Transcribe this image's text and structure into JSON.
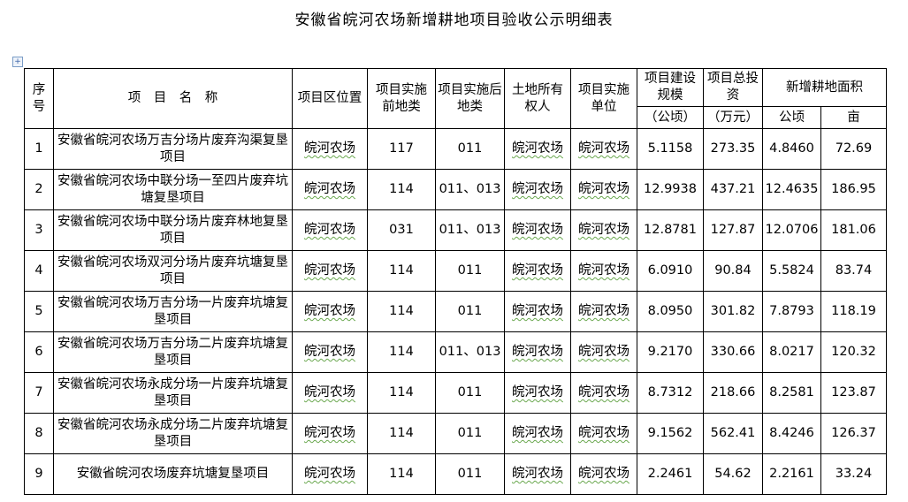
{
  "title": "安徽省皖河农场新增耕地项目验收公示明细表",
  "table": {
    "headers": {
      "seq": "序号",
      "name": "项　目　名　称",
      "location": "项目区位置",
      "before_type": "项目实施前地类",
      "after_type": "项目实施后地类",
      "owner": "土地所有权人",
      "unit": "项目实施单位",
      "scale": "项目建设规模",
      "scale_unit": "（公顷）",
      "invest": "项目总投资",
      "invest_unit": "（万元）",
      "new_area": "新增耕地面积",
      "new_area_ha": "公顷",
      "new_area_mu": "亩"
    },
    "rows": [
      {
        "seq": "1",
        "name": "安徽省皖河农场万吉分场片废弃沟渠复垦项目",
        "location": "皖河农场",
        "before": "117",
        "after": "011",
        "owner": "皖河农场",
        "unit": "皖河农场",
        "scale": "5.1158",
        "invest": "273.35",
        "ha": "4.8460",
        "mu": "72.69"
      },
      {
        "seq": "2",
        "name": "安徽省皖河农场中联分场一至四片废弃坑塘复垦项目",
        "location": "皖河农场",
        "before": "114",
        "after": "011、013",
        "owner": "皖河农场",
        "unit": "皖河农场",
        "scale": "12.9938",
        "invest": "437.21",
        "ha": "12.4635",
        "mu": "186.95"
      },
      {
        "seq": "3",
        "name": "安徽省皖河农场中联分场片废弃林地复垦项目",
        "location": "皖河农场",
        "before": "031",
        "after": "011、013",
        "owner": "皖河农场",
        "unit": "皖河农场",
        "scale": "12.8781",
        "invest": "127.87",
        "ha": "12.0706",
        "mu": "181.06"
      },
      {
        "seq": "4",
        "name": "安徽省皖河农场双河分场片废弃坑塘复垦项目",
        "location": "皖河农场",
        "before": "114",
        "after": "011",
        "owner": "皖河农场",
        "unit": "皖河农场",
        "scale": "6.0910",
        "invest": "90.84",
        "ha": "5.5824",
        "mu": "83.74"
      },
      {
        "seq": "5",
        "name": "安徽省皖河农场万吉分场一片废弃坑塘复垦项目",
        "location": "皖河农场",
        "before": "114",
        "after": "011",
        "owner": "皖河农场",
        "unit": "皖河农场",
        "scale": "8.0950",
        "invest": "301.82",
        "ha": "7.8793",
        "mu": "118.19"
      },
      {
        "seq": "6",
        "name": "安徽省皖河农场万吉分场二片废弃坑塘复垦项目",
        "location": "皖河农场",
        "before": "114",
        "after": "011、013",
        "owner": "皖河农场",
        "unit": "皖河农场",
        "scale": "9.2170",
        "invest": "330.66",
        "ha": "8.0217",
        "mu": "120.32"
      },
      {
        "seq": "7",
        "name": "安徽省皖河农场永成分场一片废弃坑塘复垦项目",
        "location": "皖河农场",
        "before": "114",
        "after": "011",
        "owner": "皖河农场",
        "unit": "皖河农场",
        "scale": "8.7312",
        "invest": "218.66",
        "ha": "8.2581",
        "mu": "123.87"
      },
      {
        "seq": "8",
        "name": "安徽省皖河农场永成分场二片废弃坑塘复垦项目",
        "location": "皖河农场",
        "before": "114",
        "after": "011",
        "owner": "皖河农场",
        "unit": "皖河农场",
        "scale": "9.1562",
        "invest": "562.41",
        "ha": "8.4246",
        "mu": "126.37"
      },
      {
        "seq": "9",
        "name": "安徽省皖河农场废弃坑塘复垦项目",
        "location": "皖河农场",
        "before": "114",
        "after": "011",
        "owner": "皖河农场",
        "unit": "皖河农场",
        "scale": "2.2461",
        "invest": "54.62",
        "ha": "2.2161",
        "mu": "33.24"
      }
    ]
  }
}
